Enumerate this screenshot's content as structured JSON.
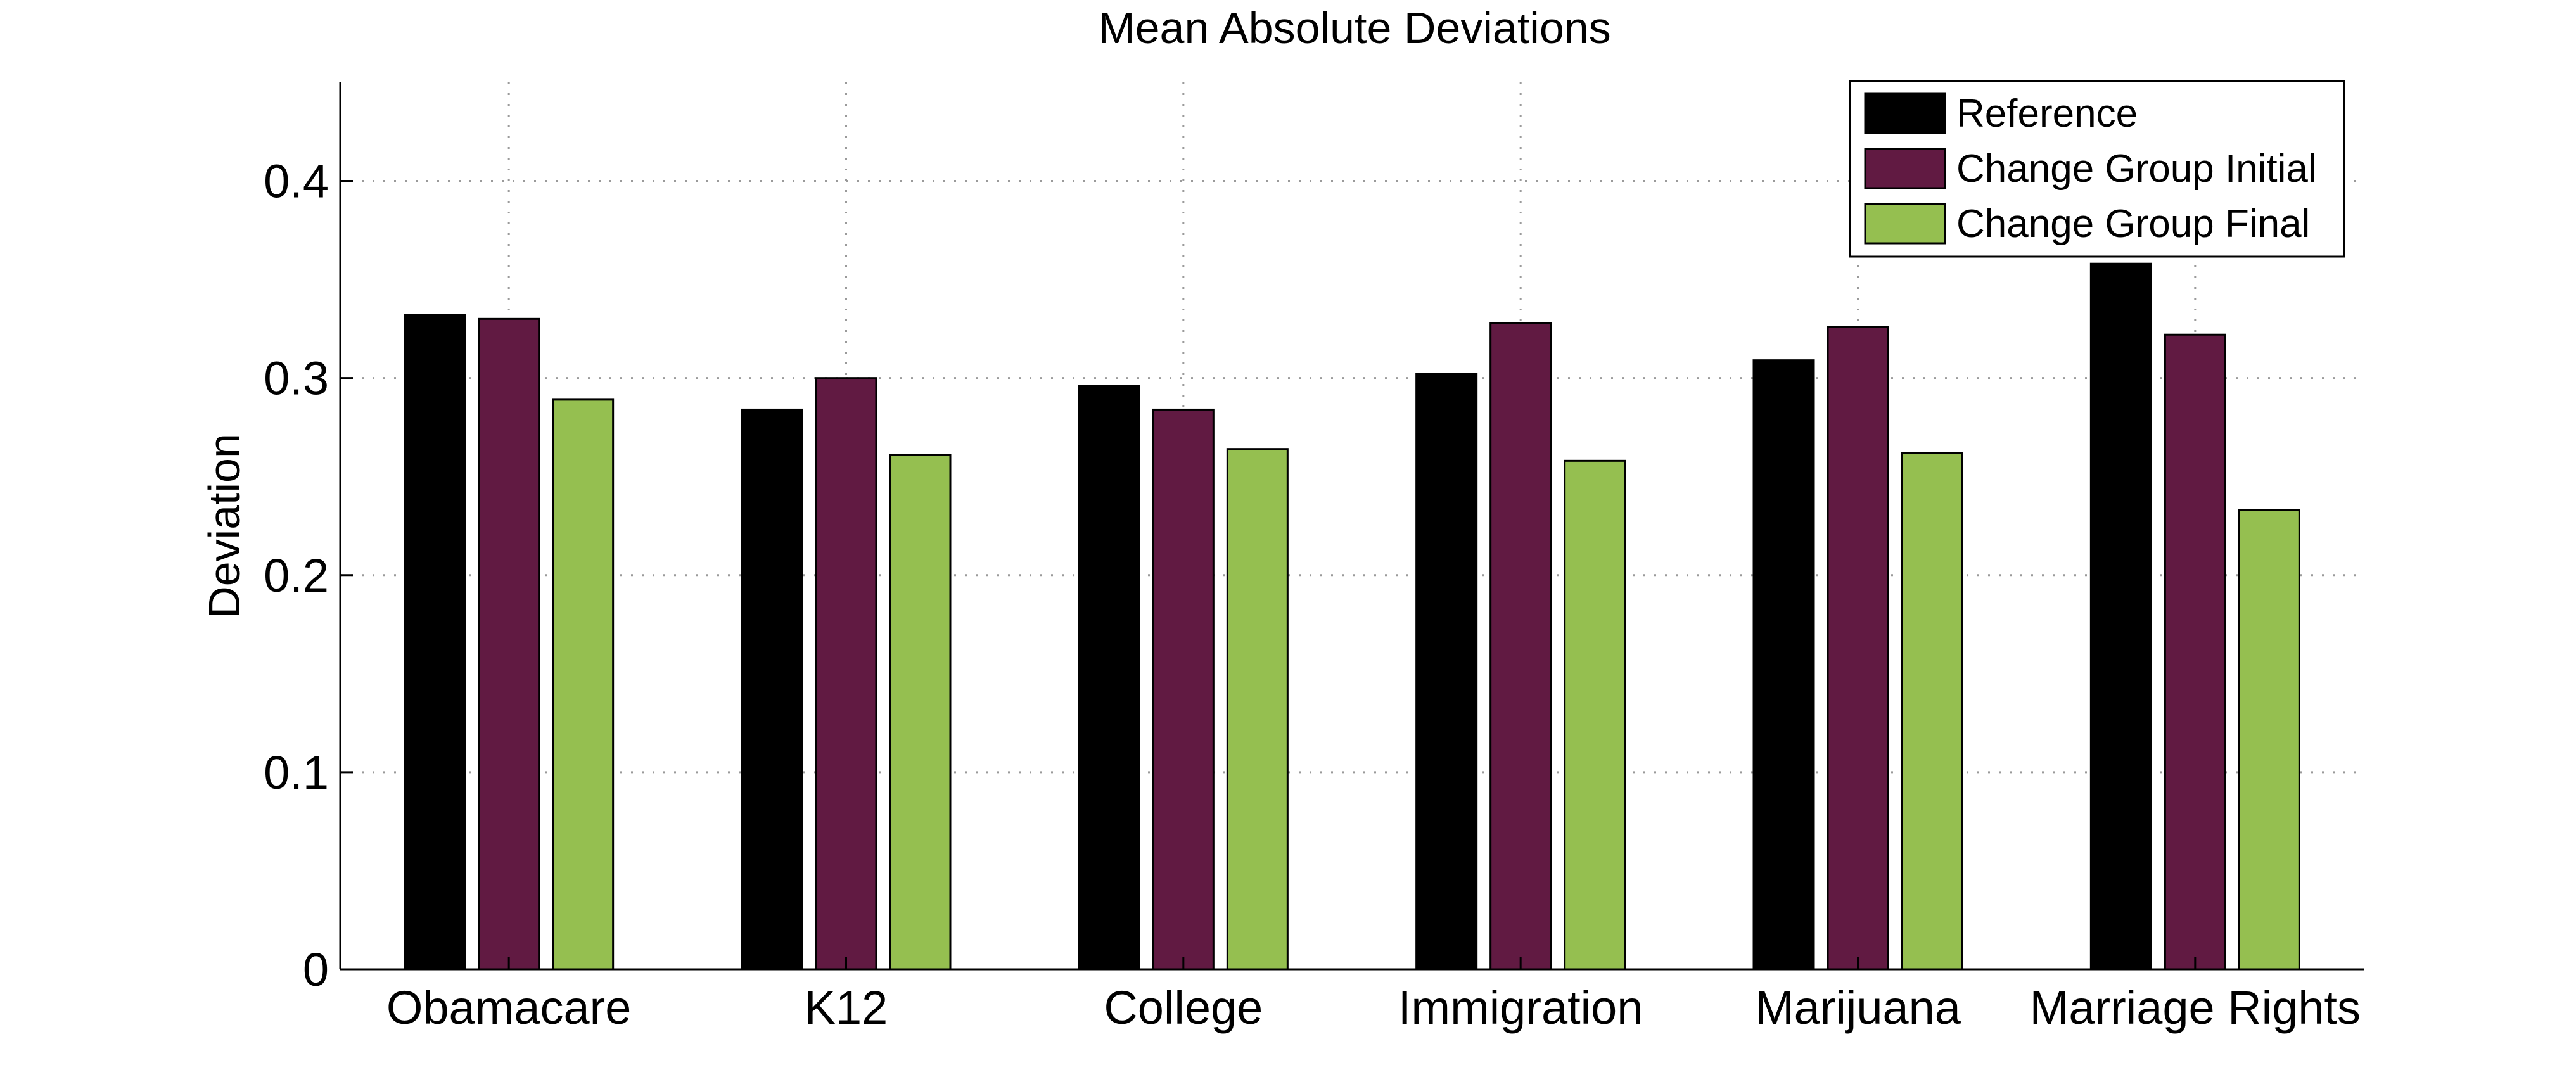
{
  "chart_data": {
    "type": "bar",
    "title": "Mean Absolute Deviations",
    "xlabel": "",
    "ylabel": "Deviation",
    "ylim": [
      0,
      0.45
    ],
    "yticks": [
      0,
      0.1,
      0.2,
      0.3,
      0.4
    ],
    "ytick_labels": [
      "0",
      "0.1",
      "0.2",
      "0.3",
      "0.4"
    ],
    "grid": true,
    "legend_position": "top-right",
    "categories": [
      "Obamacare",
      "K12",
      "College",
      "Immigration",
      "Marijuana",
      "Marriage Rights"
    ],
    "series": [
      {
        "name": "Reference",
        "color": "#000000",
        "values": [
          0.332,
          0.284,
          0.296,
          0.302,
          0.309,
          0.358
        ]
      },
      {
        "name": "Change Group Initial",
        "color": "#611a42",
        "values": [
          0.33,
          0.3,
          0.284,
          0.328,
          0.326,
          0.322
        ]
      },
      {
        "name": "Change Group Final",
        "color": "#95bf50",
        "values": [
          0.289,
          0.261,
          0.264,
          0.258,
          0.262,
          0.233
        ]
      }
    ]
  }
}
